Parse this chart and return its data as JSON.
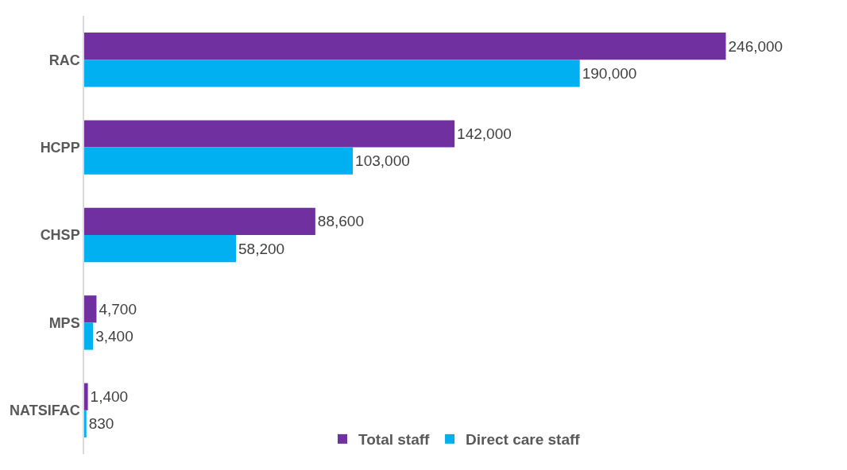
{
  "chart_data": {
    "type": "bar",
    "orientation": "horizontal",
    "categories": [
      "RAC",
      "HCPP",
      "CHSP",
      "MPS",
      "NATSIFAC"
    ],
    "series": [
      {
        "name": "Total staff",
        "color": "#7030a0",
        "values": [
          246000,
          142000,
          88600,
          4700,
          1400
        ],
        "value_labels": [
          "246,000",
          "142,000",
          "88,600",
          "4,700",
          "1,400"
        ]
      },
      {
        "name": "Direct care staff",
        "color": "#00b0f0",
        "values": [
          190000,
          103000,
          58200,
          3400,
          830
        ],
        "value_labels": [
          "190,000",
          "103,000",
          "58,200",
          "3,400",
          "830"
        ]
      }
    ],
    "legend": "bottom"
  }
}
